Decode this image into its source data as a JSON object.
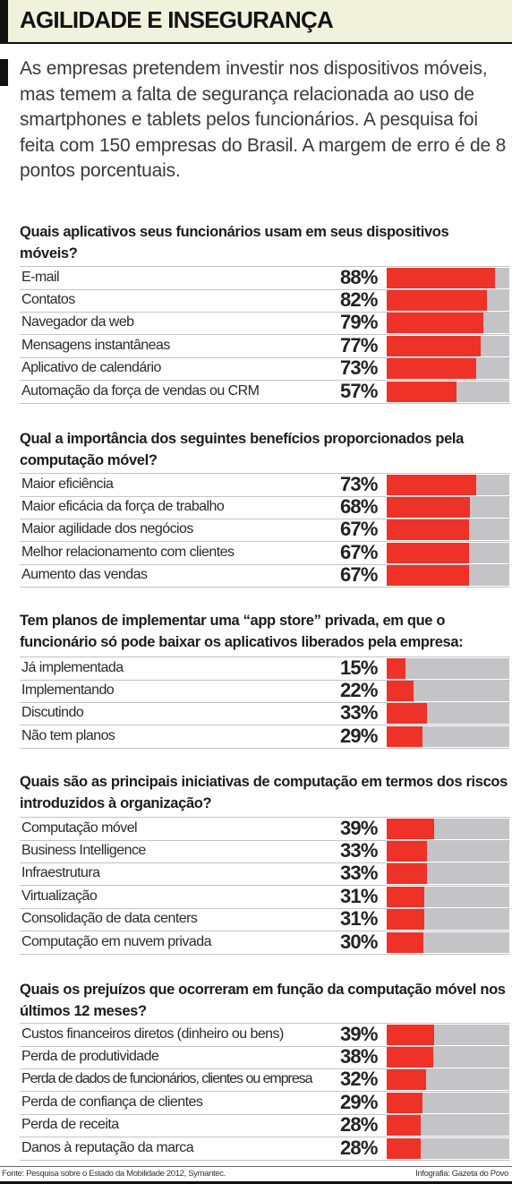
{
  "header": {
    "title": "AGILIDADE E INSEGURANÇA",
    "intro": "As empresas pretendem investir nos dispositivos móveis, mas temem a falta de segurança relacionada ao uso de smartphones e tablets pelos funcionários. A pesquisa foi feita com 150 empresas do Brasil. A margem de erro é de 8 pontos porcentuais."
  },
  "colors": {
    "bar": "#ee3228",
    "track": "#c4c4c7",
    "header_bg": "#f1f2dc",
    "accent": "#111111"
  },
  "chart_data": [
    {
      "type": "bar",
      "title": "Quais aplicativos seus funcionários usam em seus dispositivos móveis?",
      "categories": [
        "E-mail",
        "Contatos",
        "Navegador da web",
        "Mensagens instantâneas",
        "Aplicativo de calendário",
        "Automação da força de vendas ou CRM"
      ],
      "values": [
        88,
        82,
        79,
        77,
        73,
        57
      ],
      "labels": [
        "88%",
        "82%",
        "79%",
        "77%",
        "73%",
        "57%"
      ],
      "ylim": [
        0,
        100
      ]
    },
    {
      "type": "bar",
      "title": "Qual a importância dos seguintes benefícios proporcionados pela computação móvel?",
      "categories": [
        "Maior eficiência",
        "Maior eficácia da força de trabalho",
        "Maior agilidade dos negócios",
        "Melhor relacionamento com clientes",
        "Aumento das vendas"
      ],
      "values": [
        73,
        68,
        67,
        67,
        67
      ],
      "labels": [
        "73%",
        "68%",
        "67%",
        "67%",
        "67%"
      ],
      "ylim": [
        0,
        100
      ]
    },
    {
      "type": "bar",
      "title": "Tem planos de implementar uma “app store” privada, em que o funcionário só pode baixar os aplicativos liberados pela empresa:",
      "categories": [
        "Já implementada",
        "Implementando",
        "Discutindo",
        "Não tem planos"
      ],
      "values": [
        15,
        22,
        33,
        29
      ],
      "labels": [
        "15%",
        "22%",
        "33%",
        "29%"
      ],
      "ylim": [
        0,
        100
      ]
    },
    {
      "type": "bar",
      "title": "Quais são as principais iniciativas de computação em termos dos riscos introduzidos à organização?",
      "categories": [
        "Computação móvel",
        "Business Intelligence",
        "Infraestrutura",
        "Virtualização",
        "Consolidação de data centers",
        "Computação em nuvem privada"
      ],
      "values": [
        39,
        33,
        33,
        31,
        31,
        30
      ],
      "labels": [
        "39%",
        "33%",
        "33%",
        "31%",
        "31%",
        "30%"
      ],
      "ylim": [
        0,
        100
      ]
    },
    {
      "type": "bar",
      "title": "Quais os prejuízos que ocorreram em função da computação móvel nos últimos 12 meses?",
      "categories": [
        "Custos financeiros diretos (dinheiro ou bens)",
        "Perda de produtividade",
        "Perda de dados de funcionários, clientes ou empresa",
        "Perda de confiança de clientes",
        "Perda de receita",
        "Danos à reputação da marca"
      ],
      "values": [
        39,
        38,
        32,
        29,
        28,
        28
      ],
      "labels": [
        "39%",
        "38%",
        "32%",
        "29%",
        "28%",
        "28%"
      ],
      "ylim": [
        0,
        100
      ]
    }
  ],
  "footer": {
    "source": "Fonte: Pesquisa sobre o Estado da Mobilidade 2012, Symantec.",
    "credit": "Infografia: Gazeta do Povo"
  }
}
